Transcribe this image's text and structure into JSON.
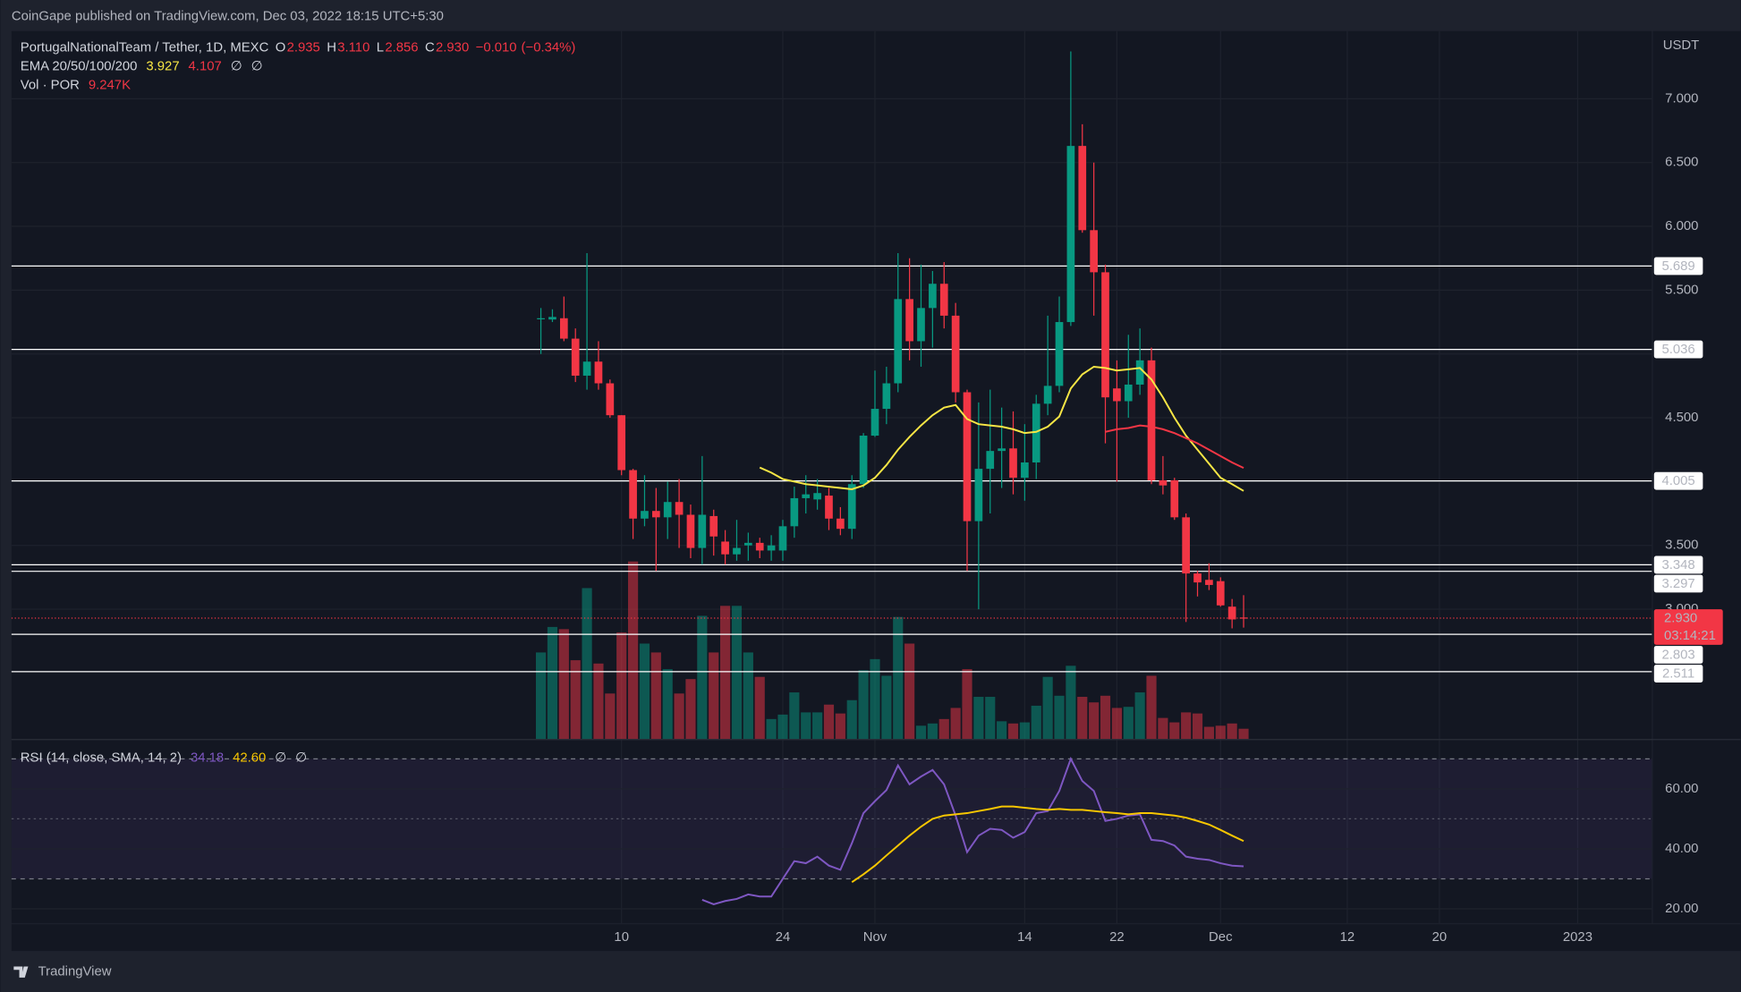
{
  "header": {
    "published": "CoinGape published on TradingView.com, Dec 03, 2022 18:15 UTC+5:30",
    "symbol": "PortugalNationalTeam / Tether, 1D, MEXC",
    "ohlc": [
      {
        "key": "O",
        "value": 2.935,
        "label": "2.935"
      },
      {
        "key": "H",
        "value": 3.11,
        "label": "3.110"
      },
      {
        "key": "L",
        "value": 2.856,
        "label": "2.856"
      },
      {
        "key": "C",
        "value": 2.93,
        "label": "2.930"
      }
    ],
    "change": {
      "value": -0.01,
      "label": "−0.010"
    },
    "change_pct": {
      "value": -0.34,
      "label": "(−0.34%)"
    },
    "currency": "USDT",
    "brand": "TradingView"
  },
  "chart_data": {
    "type": "candlestick",
    "up_color": "#089981",
    "down_color": "#f23645",
    "grid": true,
    "categories": [
      null,
      null,
      null,
      null,
      null,
      null,
      null,
      "10",
      null,
      null,
      null,
      null,
      null,
      null,
      null,
      null,
      null,
      null,
      null,
      null,
      null,
      "24",
      null,
      null,
      null,
      null,
      null,
      null,
      null,
      "Nov",
      null,
      null,
      null,
      null,
      null,
      null,
      null,
      null,
      null,
      null,
      null,
      null,
      "14",
      null,
      null,
      null,
      null,
      null,
      null,
      null,
      "22",
      null,
      null,
      null,
      null,
      null,
      null,
      null,
      null,
      "Dec",
      null,
      null,
      null,
      null,
      null,
      null,
      null,
      null,
      null,
      null,
      "12",
      null,
      null,
      null,
      null,
      null,
      null,
      null,
      "20",
      null,
      null,
      null,
      null,
      null,
      null,
      null,
      null,
      null,
      null,
      null,
      "2023"
    ],
    "open": [
      5.28,
      5.27,
      5.28,
      5.12,
      4.83,
      4.94,
      4.77,
      4.52,
      4.09,
      3.71,
      3.77,
      3.72,
      3.84,
      3.74,
      3.48,
      3.73,
      3.53,
      3.43,
      3.5,
      3.52,
      3.46,
      3.46,
      3.65,
      3.87,
      3.86,
      3.89,
      3.71,
      3.63,
      3.98,
      4.36,
      4.57,
      4.77,
      5.43,
      5.1,
      5.36,
      5.55,
      5.3,
      4.7,
      3.69,
      4.1,
      4.24,
      4.26,
      4.03,
      4.15,
      4.61,
      4.75,
      5.25,
      6.63,
      5.97,
      5.64,
      4.73,
      4.63,
      4.76,
      4.95,
      4.01,
      4.01,
      3.72,
      3.28,
      3.23,
      3.22,
      3.02,
      2.935,
      null,
      null,
      null,
      null,
      null,
      null,
      null,
      null,
      null,
      null,
      null,
      null,
      null,
      null,
      null,
      null,
      null,
      null,
      null,
      null,
      null,
      null,
      null,
      null,
      null,
      null,
      null,
      null,
      null
    ],
    "high": [
      5.36,
      5.35,
      5.45,
      5.2,
      5.79,
      5.1,
      4.8,
      4.52,
      4.1,
      4.05,
      3.95,
      4.0,
      4.02,
      3.82,
      4.2,
      3.78,
      3.62,
      3.7,
      3.6,
      3.56,
      3.58,
      3.7,
      3.96,
      4.05,
      4.02,
      3.95,
      3.8,
      4.05,
      4.38,
      4.87,
      4.9,
      5.79,
      5.75,
      5.7,
      5.65,
      5.72,
      5.4,
      4.72,
      4.62,
      4.72,
      4.58,
      4.55,
      4.45,
      4.68,
      5.3,
      5.45,
      7.37,
      6.8,
      6.5,
      5.7,
      4.95,
      5.15,
      5.2,
      5.05,
      4.2,
      4.03,
      3.75,
      3.3,
      3.36,
      3.25,
      3.08,
      3.11,
      null,
      null,
      null,
      null,
      null,
      null,
      null,
      null,
      null,
      null,
      null,
      null,
      null,
      null,
      null,
      null,
      null,
      null,
      null,
      null,
      null,
      null,
      null,
      null,
      null,
      null,
      null,
      null,
      null
    ],
    "low": [
      5.0,
      5.25,
      5.1,
      4.78,
      4.72,
      4.72,
      4.5,
      4.05,
      3.55,
      3.65,
      3.3,
      3.55,
      3.48,
      3.4,
      3.35,
      3.42,
      3.35,
      3.38,
      3.38,
      3.4,
      3.38,
      3.38,
      3.56,
      3.75,
      3.78,
      3.62,
      3.58,
      3.55,
      3.95,
      4.35,
      4.45,
      4.7,
      4.95,
      4.9,
      5.05,
      5.2,
      4.62,
      3.3,
      3.0,
      3.75,
      3.95,
      3.9,
      3.85,
      4.02,
      4.52,
      4.7,
      5.22,
      5.95,
      5.3,
      4.3,
      4.0,
      4.5,
      4.68,
      3.98,
      3.9,
      3.7,
      2.9,
      3.1,
      3.15,
      3.02,
      2.85,
      2.856,
      null,
      null,
      null,
      null,
      null,
      null,
      null,
      null,
      null,
      null,
      null,
      null,
      null,
      null,
      null,
      null,
      null,
      null,
      null,
      null,
      null,
      null,
      null,
      null,
      null,
      null,
      null,
      null,
      null
    ],
    "close": [
      5.28,
      5.29,
      5.12,
      4.83,
      4.94,
      4.77,
      4.52,
      4.09,
      3.71,
      3.77,
      3.72,
      3.84,
      3.74,
      3.48,
      3.74,
      3.57,
      3.43,
      3.48,
      3.52,
      3.46,
      3.5,
      3.65,
      3.87,
      3.9,
      3.91,
      3.71,
      3.63,
      3.98,
      4.36,
      4.57,
      4.77,
      5.43,
      5.1,
      5.36,
      5.55,
      5.3,
      4.7,
      3.69,
      4.1,
      4.24,
      4.26,
      4.03,
      4.15,
      4.61,
      4.75,
      5.25,
      6.63,
      5.97,
      5.64,
      4.66,
      4.63,
      4.76,
      4.95,
      4.01,
      3.97,
      3.72,
      3.28,
      3.21,
      3.19,
      3.03,
      2.92,
      2.93,
      null,
      null,
      null,
      null,
      null,
      null,
      null,
      null,
      null,
      null,
      null,
      null,
      null,
      null,
      null,
      null,
      null,
      null,
      null,
      null,
      null,
      null,
      null,
      null,
      null,
      null,
      null,
      null,
      null
    ],
    "ylim": [
      1.983,
      7.53
    ],
    "yticks": [
      {
        "value": 3,
        "label": "3.000"
      },
      {
        "value": 3.5,
        "label": "3.500"
      },
      {
        "value": 4,
        "label": "4.000"
      },
      {
        "value": 4.5,
        "label": "4.500"
      },
      {
        "value": 5,
        "label": "5.000"
      },
      {
        "value": 5.5,
        "label": "5.500"
      },
      {
        "value": 6,
        "label": "6.000"
      },
      {
        "value": 6.5,
        "label": "6.500"
      },
      {
        "value": 7,
        "label": "7.000"
      }
    ],
    "levels": [
      5.689,
      5.036,
      4.005,
      3.348,
      3.297,
      2.803,
      2.511
    ],
    "level_color": "#ffffff",
    "last_price": {
      "value": 2.93,
      "label": "2.930"
    },
    "countdown": "03:14:21",
    "ema": {
      "name": "EMA 20/50/100/200",
      "empty_labels": [
        "∅",
        "∅"
      ],
      "series": [
        {
          "color": "#f7e645",
          "label": "3.927",
          "values": [
            null,
            null,
            null,
            null,
            null,
            null,
            null,
            null,
            null,
            null,
            null,
            null,
            null,
            null,
            null,
            null,
            null,
            null,
            null,
            4.11,
            4.07,
            4.02,
            4.0,
            3.98,
            3.97,
            3.96,
            3.95,
            3.94,
            3.97,
            4.03,
            4.13,
            4.25,
            4.35,
            4.44,
            4.52,
            4.58,
            4.6,
            4.49,
            4.45,
            4.44,
            4.43,
            4.41,
            4.38,
            4.39,
            4.43,
            4.51,
            4.73,
            4.84,
            4.9,
            4.89,
            4.87,
            4.88,
            4.89,
            4.8,
            4.66,
            4.5,
            4.36,
            4.25,
            4.14,
            4.03,
            3.98,
            3.927,
            null,
            null,
            null,
            null,
            null,
            null,
            null,
            null,
            null,
            null,
            null,
            null,
            null,
            null,
            null,
            null,
            null,
            null,
            null,
            null,
            null,
            null,
            null,
            null,
            null,
            null,
            null,
            null,
            null
          ]
        },
        {
          "color": "#f23645",
          "label": "4.107",
          "values": [
            null,
            null,
            null,
            null,
            null,
            null,
            null,
            null,
            null,
            null,
            null,
            null,
            null,
            null,
            null,
            null,
            null,
            null,
            null,
            null,
            null,
            null,
            null,
            null,
            null,
            null,
            null,
            null,
            null,
            null,
            null,
            null,
            null,
            null,
            null,
            null,
            null,
            null,
            null,
            null,
            null,
            null,
            null,
            null,
            null,
            null,
            null,
            null,
            null,
            4.39,
            4.41,
            4.42,
            4.44,
            4.43,
            4.41,
            4.38,
            4.34,
            4.3,
            4.25,
            4.2,
            4.15,
            4.107,
            null,
            null,
            null,
            null,
            null,
            null,
            null,
            null,
            null,
            null,
            null,
            null,
            null,
            null,
            null,
            null,
            null,
            null,
            null,
            null,
            null,
            null,
            null,
            null,
            null,
            null,
            null,
            null,
            null
          ]
        }
      ]
    },
    "volume": {
      "name": "Vol · POR",
      "label": "9.247K",
      "ylim": [
        0,
        638
      ],
      "values": [
        78,
        101,
        99,
        71,
        136,
        68,
        41,
        96,
        160,
        86,
        78,
        63,
        41,
        54,
        111,
        78,
        120,
        120,
        78,
        56,
        18,
        22,
        42,
        24,
        24,
        31,
        23,
        35,
        62,
        72,
        57,
        110,
        86,
        12,
        14,
        18,
        28,
        63,
        38,
        38,
        16,
        14,
        15,
        30,
        56,
        39,
        66,
        38,
        33,
        39,
        28,
        29,
        42,
        57,
        19,
        15,
        24,
        23,
        11,
        12,
        14,
        9.247,
        null,
        null,
        null,
        null,
        null,
        null,
        null,
        null,
        null,
        null,
        null,
        null,
        null,
        null,
        null,
        null,
        null,
        null,
        null,
        null,
        null,
        null,
        null,
        null,
        null,
        null,
        null,
        null,
        null
      ]
    },
    "rsi": {
      "name": "RSI (14, close, SMA, 14, 2)",
      "empty_labels": [
        "∅",
        "∅"
      ],
      "ylim": [
        15.2,
        74.4
      ],
      "yticks": [
        {
          "value": 20,
          "label": "20.00"
        },
        {
          "value": 40,
          "label": "40.00"
        },
        {
          "value": 60,
          "label": "60.00"
        }
      ],
      "bands": [
        70,
        50,
        30
      ],
      "series": [
        {
          "color": "#7e57c2",
          "label": "34.18",
          "values": [
            null,
            null,
            null,
            null,
            null,
            null,
            null,
            null,
            null,
            null,
            null,
            null,
            null,
            null,
            23.0,
            21.5,
            22.6,
            23.3,
            24.8,
            24.1,
            24.1,
            30.0,
            35.9,
            35.2,
            37.4,
            34.4,
            33.0,
            41.9,
            51.9,
            55.9,
            59.6,
            67.8,
            61.5,
            64.1,
            66.3,
            61.5,
            51.1,
            38.9,
            44.4,
            46.7,
            46.3,
            43.7,
            45.6,
            51.9,
            52.6,
            59.3,
            70.0,
            62.6,
            59.3,
            49.3,
            50.0,
            51.1,
            51.5,
            43.0,
            42.6,
            41.1,
            37.4,
            36.7,
            36.3,
            35.2,
            34.4,
            34.18,
            null,
            null,
            null,
            null,
            null,
            null,
            null,
            null,
            null,
            null,
            null,
            null,
            null,
            null,
            null,
            null,
            null,
            null,
            null,
            null,
            null,
            null,
            null,
            null,
            null,
            null,
            null,
            null,
            null
          ]
        },
        {
          "color": "#f7c600",
          "label": "42.60",
          "values": [
            null,
            null,
            null,
            null,
            null,
            null,
            null,
            null,
            null,
            null,
            null,
            null,
            null,
            null,
            null,
            null,
            null,
            null,
            null,
            null,
            null,
            null,
            null,
            null,
            null,
            null,
            null,
            28.9,
            31.5,
            34.4,
            37.8,
            41.1,
            44.4,
            47.4,
            50.0,
            51.1,
            51.5,
            51.9,
            52.6,
            53.3,
            54.1,
            54.1,
            53.7,
            53.3,
            53.0,
            53.3,
            53.0,
            53.0,
            52.6,
            52.2,
            51.9,
            51.5,
            51.9,
            51.9,
            51.5,
            51.1,
            50.4,
            49.3,
            48.1,
            46.3,
            44.4,
            42.6,
            null,
            null,
            null,
            null,
            null,
            null,
            null,
            null,
            null,
            null,
            null,
            null,
            null,
            null,
            null,
            null,
            null,
            null,
            null,
            null,
            null,
            null,
            null,
            null,
            null,
            null,
            null,
            null,
            null
          ]
        }
      ]
    }
  }
}
